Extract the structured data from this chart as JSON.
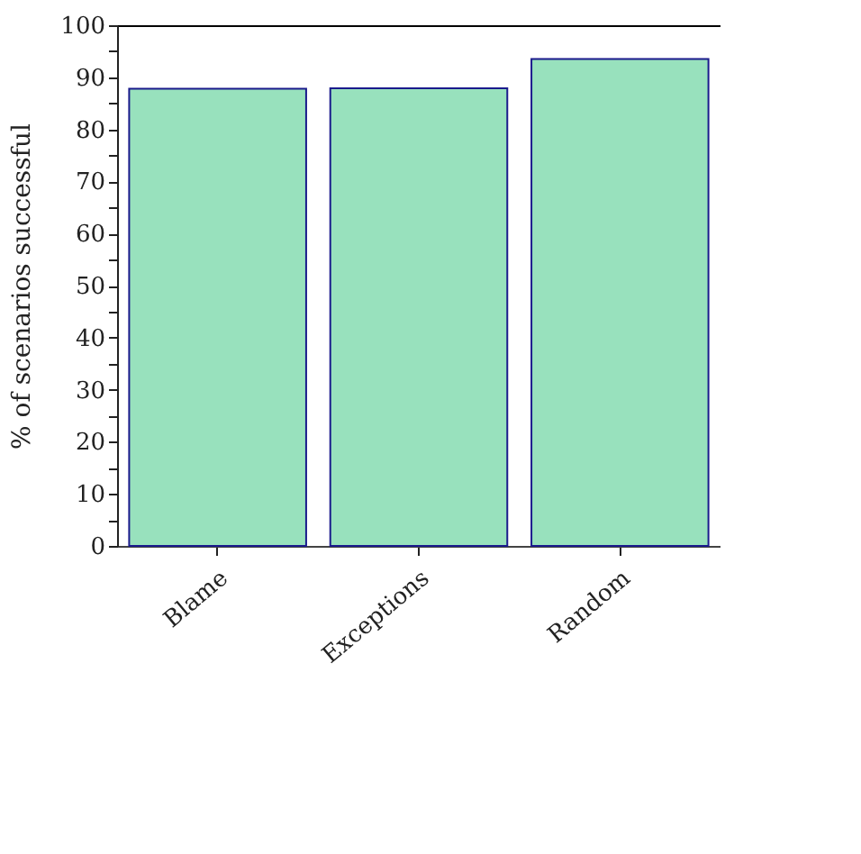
{
  "chart_data": {
    "type": "bar",
    "ylabel": "% of scenarios successful",
    "categories": [
      "Blame",
      "Exceptions",
      "Random"
    ],
    "values": [
      87.8,
      87.9,
      93.5
    ],
    "color": "#98e1bd",
    "ylim": [
      0,
      100
    ],
    "yticks": [
      0,
      {
        "value": 5,
        "label": null
      },
      10,
      {
        "value": 15,
        "label": null
      },
      20,
      {
        "value": 25,
        "label": null
      },
      30,
      {
        "value": 35,
        "label": null
      },
      40,
      {
        "value": 45,
        "label": null
      },
      50,
      {
        "value": 55,
        "label": null
      },
      60,
      {
        "value": 65,
        "label": null
      },
      70,
      {
        "value": 75,
        "label": null
      },
      80,
      {
        "value": 85,
        "label": null
      },
      90,
      {
        "value": 95,
        "label": null
      },
      100
    ],
    "grid": false
  }
}
